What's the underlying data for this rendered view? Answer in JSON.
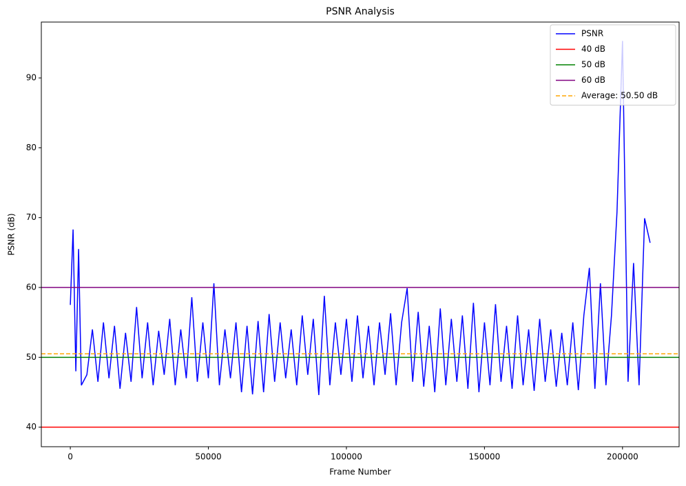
{
  "chart_data": {
    "type": "line",
    "title": "PSNR Analysis",
    "x_label": "Frame Number",
    "y_label": "PSNR (dB)",
    "xlim": [
      -10500,
      220500
    ],
    "ylim": [
      37.2,
      98.0
    ],
    "xticks": [
      0,
      50000,
      100000,
      150000,
      200000
    ],
    "yticks": [
      40,
      50,
      60,
      70,
      80,
      90
    ],
    "legend": "upper right",
    "series": [
      {
        "name": "PSNR",
        "color": "#0000ff",
        "x": [
          0,
          1000,
          2000,
          3000,
          4000,
          6000,
          8000,
          10000,
          12000,
          14000,
          16000,
          18000,
          20000,
          22000,
          24000,
          26000,
          28000,
          30000,
          32000,
          34000,
          36000,
          38000,
          40000,
          42000,
          44000,
          46000,
          48000,
          50000,
          52000,
          54000,
          56000,
          58000,
          60000,
          62000,
          64000,
          66000,
          68000,
          70000,
          72000,
          74000,
          76000,
          78000,
          80000,
          82000,
          84000,
          86000,
          88000,
          90000,
          92000,
          94000,
          96000,
          98000,
          100000,
          102000,
          104000,
          106000,
          108000,
          110000,
          112000,
          114000,
          116000,
          118000,
          120000,
          122000,
          124000,
          126000,
          128000,
          130000,
          132000,
          134000,
          136000,
          138000,
          140000,
          142000,
          144000,
          146000,
          148000,
          150000,
          152000,
          154000,
          156000,
          158000,
          160000,
          162000,
          164000,
          166000,
          168000,
          170000,
          172000,
          174000,
          176000,
          178000,
          180000,
          182000,
          184000,
          186000,
          188000,
          190000,
          192000,
          194000,
          196000,
          198000,
          200000,
          202000,
          204000,
          206000,
          208000,
          210000
        ],
        "values": [
          57.5,
          68.3,
          48,
          65.5,
          46,
          47.5,
          54,
          46.5,
          55,
          47,
          54.5,
          45.5,
          53.5,
          46.5,
          57.2,
          47,
          55,
          46,
          53.8,
          47.5,
          55.5,
          46,
          54,
          47,
          58.6,
          46.5,
          55,
          47,
          60.6,
          46,
          54,
          47,
          55,
          45,
          54.5,
          44.7,
          55.2,
          45,
          56.2,
          46.5,
          55,
          47,
          54,
          46,
          56,
          47.5,
          55.5,
          44.6,
          58.8,
          46,
          55,
          47.5,
          55.5,
          46.5,
          56,
          47,
          54.5,
          46,
          55,
          47.5,
          56.3,
          46,
          55,
          59.9,
          46.5,
          56.5,
          45.8,
          54.5,
          45,
          57,
          46,
          55.5,
          46.5,
          56,
          45.5,
          57.8,
          45,
          55,
          46,
          57.6,
          46.5,
          54.5,
          45.5,
          56,
          46,
          54,
          45.2,
          55.5,
          46.5,
          54,
          45.8,
          53.5,
          46,
          55,
          45.3,
          56,
          62.8,
          45.5,
          60.6,
          46,
          56,
          70.8,
          95.3,
          46.5,
          63.5,
          46,
          69.9,
          66.4
        ]
      }
    ],
    "reference_lines": [
      {
        "name": "40 dB",
        "color": "#ff0000",
        "value": 40,
        "linestyle": "solid"
      },
      {
        "name": "50 dB",
        "color": "#008000",
        "value": 50,
        "linestyle": "solid"
      },
      {
        "name": "60 dB",
        "color": "#800080",
        "value": 60,
        "linestyle": "solid"
      },
      {
        "name": "Average: 50.50 dB",
        "color": "#ffa500",
        "value": 50.5,
        "linestyle": "dashed"
      }
    ]
  }
}
